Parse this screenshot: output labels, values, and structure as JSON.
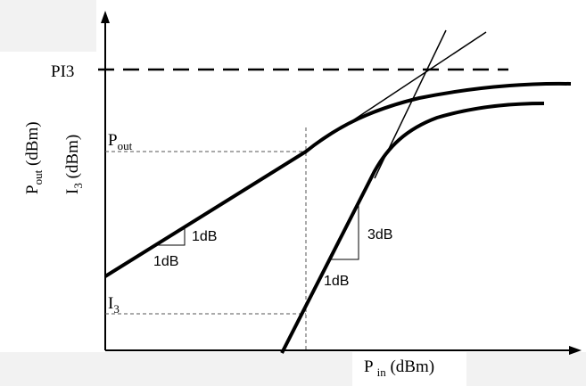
{
  "labels": {
    "pi3": "PI3",
    "pout_main": "P",
    "pout_sub": "out",
    "i3_main": "I",
    "i3_sub": "3",
    "y_axis_pout_main": "P",
    "y_axis_pout_sub": "out",
    "y_axis_pout_unit": " (dBm)",
    "y_axis_i3_main": "I",
    "y_axis_i3_sub": "3",
    "y_axis_i3_unit": " (dBm)",
    "x_axis_main": "P",
    "x_axis_sub": "in",
    "x_axis_unit": " (dBm)",
    "slope1_rise": "1dB",
    "slope1_run": "1dB",
    "slope3_rise": "3dB",
    "slope3_run": "1dB"
  },
  "colors": {
    "line": "#000000",
    "guide": "#555555",
    "panel_bg": "#f2f2f2"
  }
}
